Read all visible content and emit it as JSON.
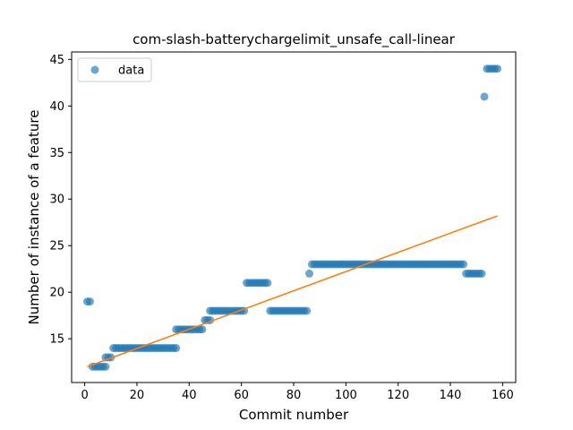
{
  "chart_data": {
    "type": "scatter",
    "title": "com-slash-batterychargelimit_unsafe_call-linear",
    "xlabel": "Commit number",
    "ylabel": "Number of instance of a feature",
    "xlim": [
      -5,
      165
    ],
    "ylim": [
      10.3,
      45.8
    ],
    "xticks": [
      0,
      20,
      40,
      60,
      80,
      100,
      120,
      140,
      160
    ],
    "yticks": [
      15,
      20,
      25,
      30,
      35,
      40,
      45
    ],
    "legend": {
      "position": "top-left",
      "entries": [
        "data"
      ]
    },
    "grid": false,
    "colors": {
      "points": "#1f77b4",
      "fit": "#ff7f0e"
    },
    "series": [
      {
        "name": "data",
        "kind": "scatter",
        "segments": [
          {
            "x_from": 1,
            "x_to": 2,
            "y": 19
          },
          {
            "x_from": 3,
            "x_to": 8,
            "y": 12
          },
          {
            "x_from": 8,
            "x_to": 10,
            "y": 13
          },
          {
            "x_from": 11,
            "x_to": 35,
            "y": 14
          },
          {
            "x_from": 35,
            "x_to": 45,
            "y": 16
          },
          {
            "x_from": 46,
            "x_to": 48,
            "y": 17
          },
          {
            "x_from": 48,
            "x_to": 61,
            "y": 18
          },
          {
            "x_from": 62,
            "x_to": 70,
            "y": 21
          },
          {
            "x_from": 71,
            "x_to": 85,
            "y": 18
          },
          {
            "x_from": 86,
            "x_to": 86,
            "y": 22
          },
          {
            "x_from": 87,
            "x_to": 145,
            "y": 23
          },
          {
            "x_from": 146,
            "x_to": 152,
            "y": 22
          },
          {
            "x_from": 153,
            "x_to": 153,
            "y": 41
          },
          {
            "x_from": 154,
            "x_to": 158,
            "y": 44
          }
        ]
      },
      {
        "name": "",
        "kind": "line",
        "x": [
          1,
          158
        ],
        "y": [
          12.0,
          28.2
        ]
      }
    ]
  }
}
